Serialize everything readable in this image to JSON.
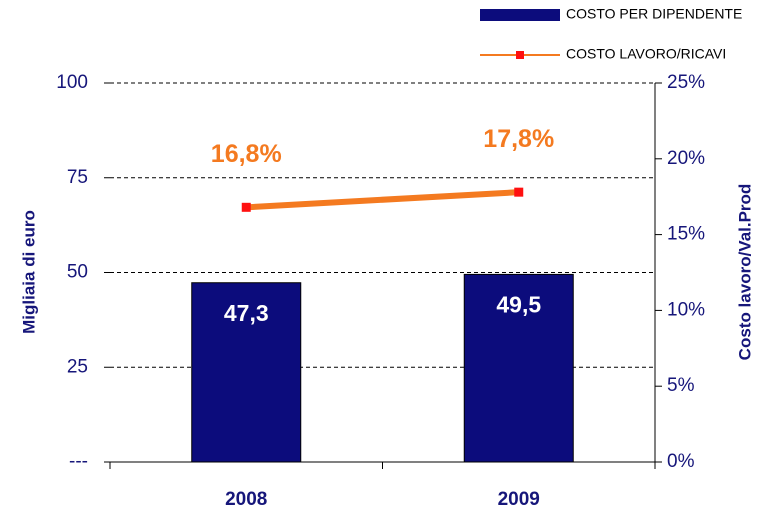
{
  "chart_data": {
    "type": "bar",
    "categories": [
      "2008",
      "2009"
    ],
    "series": [
      {
        "name": "COSTO PER DIPENDENTE",
        "type": "bar",
        "color": "#0c0c7c",
        "values": [
          47.3,
          49.5
        ],
        "value_labels": [
          "47,3",
          "49,5"
        ]
      },
      {
        "name": "COSTO LAVORO/RICAVI",
        "type": "line",
        "axis": "y2",
        "color": "#f47a20",
        "marker_color": "#ff1010",
        "label_color": "#f47a20",
        "values": [
          16.8,
          17.8
        ],
        "value_labels": [
          "16,8%",
          "17,8%"
        ]
      }
    ],
    "ylabel": "Migliaia di euro",
    "y2label": "Costo lavoro/Val.Prod",
    "ylim": [
      0,
      100
    ],
    "yticks": [
      {
        "value": 0,
        "label": "---"
      },
      25,
      50,
      75,
      100
    ],
    "y2lim": [
      0,
      25
    ],
    "y2ticks": [
      {
        "value": 0,
        "label": "0%"
      },
      {
        "value": 5,
        "label": "5%"
      },
      {
        "value": 10,
        "label": "10%"
      },
      {
        "value": 15,
        "label": "15%"
      },
      {
        "value": 20,
        "label": "20%"
      },
      {
        "value": 25,
        "label": "25%"
      }
    ],
    "grid": true,
    "legend": "top-right"
  }
}
